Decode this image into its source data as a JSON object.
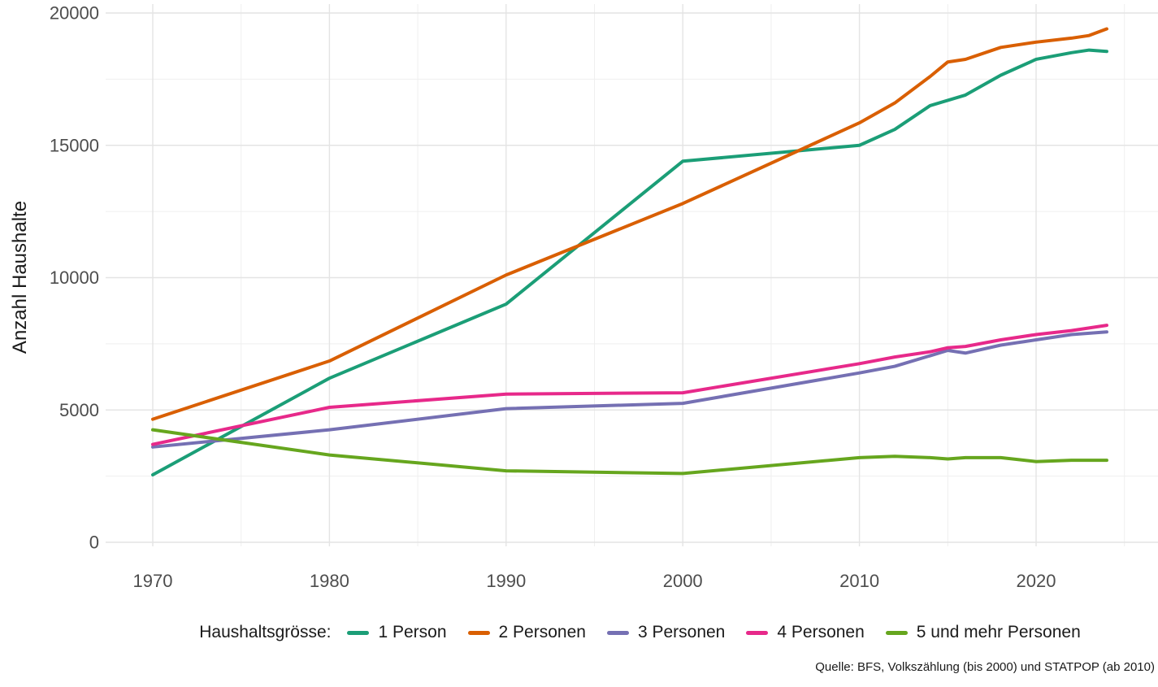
{
  "chart_data": {
    "type": "line",
    "title": "",
    "xlabel": "",
    "ylabel": "Anzahl Haushalte",
    "x": [
      1970,
      1980,
      1990,
      2000,
      2010,
      2012,
      2014,
      2015,
      2016,
      2018,
      2020,
      2022,
      2023,
      2024
    ],
    "x_ticks": [
      1970,
      1980,
      1990,
      2000,
      2010,
      2020
    ],
    "x_minor_ticks": [
      1975,
      1985,
      1995,
      2005,
      2015,
      2025
    ],
    "y_ticks": [
      0,
      5000,
      10000,
      15000,
      20000
    ],
    "y_minor_ticks": [
      2500,
      7500,
      12500,
      17500
    ],
    "ylim": [
      0,
      20000
    ],
    "xlim": [
      1967.3,
      2026.9
    ],
    "grid": "major and minor, light gray on white, no axis lines",
    "legend_position": "bottom",
    "series": [
      {
        "name": "1 Person",
        "color": "#1B9E77",
        "values": [
          2550,
          6200,
          9000,
          14400,
          15000,
          15600,
          16500,
          16700,
          16900,
          17650,
          18250,
          18500,
          18600,
          18550
        ]
      },
      {
        "name": "2 Personen",
        "color": "#D95F02",
        "values": [
          4650,
          6850,
          10100,
          12800,
          15850,
          16600,
          17600,
          18150,
          18250,
          18700,
          18900,
          19050,
          19150,
          19400
        ]
      },
      {
        "name": "3 Personen",
        "color": "#7570B3",
        "values": [
          3600,
          4250,
          5050,
          5250,
          6400,
          6650,
          7050,
          7250,
          7150,
          7450,
          7650,
          7850,
          7900,
          7950
        ]
      },
      {
        "name": "4 Personen",
        "color": "#E7298A",
        "values": [
          3700,
          5100,
          5600,
          5650,
          6750,
          7000,
          7200,
          7350,
          7400,
          7650,
          7850,
          8000,
          8100,
          8200
        ]
      },
      {
        "name": "5 und mehr Personen",
        "color": "#66A61E",
        "values": [
          4250,
          3300,
          2700,
          2600,
          3200,
          3250,
          3200,
          3150,
          3200,
          3200,
          3050,
          3100,
          3100,
          3100
        ]
      }
    ]
  },
  "legend": {
    "title": "Haushaltsgrösse:",
    "items": [
      {
        "label": "1 Person",
        "color": "#1B9E77"
      },
      {
        "label": "2 Personen",
        "color": "#D95F02"
      },
      {
        "label": "3 Personen",
        "color": "#7570B3"
      },
      {
        "label": "4 Personen",
        "color": "#E7298A"
      },
      {
        "label": "5 und mehr Personen",
        "color": "#66A61E"
      }
    ]
  },
  "caption": "Quelle: BFS, Volkszählung (bis 2000) und STATPOP (ab 2010)",
  "colors": {
    "background": "#FFFFFF",
    "grid_major": "#E4E4E4",
    "grid_minor": "#EFEFEF",
    "tick_text": "#4D4D4D",
    "axis_title_text": "#1A1A1A"
  }
}
